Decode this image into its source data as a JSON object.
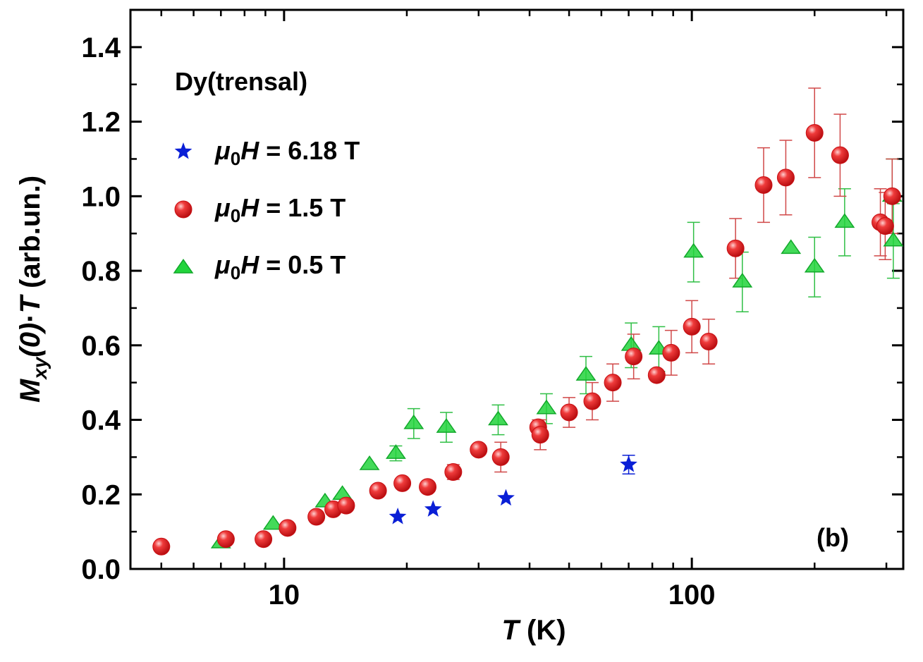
{
  "chart_data": {
    "type": "scatter",
    "title": "",
    "xlabel": "T (K)",
    "ylabel": "Mxy(0)·T (arb.un.)",
    "x_scale": "log",
    "xlim": [
      4.2,
      330
    ],
    "ylim": [
      0.0,
      1.5
    ],
    "x_ticks": [
      10,
      100
    ],
    "x_tick_labels": [
      "10",
      "100"
    ],
    "y_ticks": [
      0.0,
      0.2,
      0.4,
      0.6,
      0.8,
      1.0,
      1.2,
      1.4
    ],
    "y_tick_labels": [
      "0.0",
      "0.2",
      "0.4",
      "0.6",
      "0.8",
      "1.0",
      "1.2",
      "1.4"
    ],
    "grid": false,
    "legend_title": "Dy(trensal)",
    "legend_placement": "top-left",
    "panel_label": "(b)",
    "series": [
      {
        "name": "μ0H = 6.18 T",
        "marker": "star",
        "color": "#0a1fd6",
        "x": [
          19.0,
          23.2,
          35.0,
          70.0
        ],
        "y": [
          0.14,
          0.16,
          0.19,
          0.28
        ],
        "err": [
          0,
          0,
          0,
          0.025
        ]
      },
      {
        "name": "μ0H = 1.5 T",
        "marker": "circle",
        "color": "#e3151a",
        "x": [
          5.0,
          7.2,
          8.9,
          10.2,
          12.0,
          13.2,
          14.2,
          17.0,
          19.5,
          22.5,
          26.0,
          30.0,
          34.0,
          42.0,
          42.5,
          50.0,
          57.0,
          64.0,
          72.0,
          82.0,
          89.0,
          100.0,
          110.0,
          128.0,
          150.0,
          170.0,
          200.0,
          231.0,
          290.0,
          298.0,
          310.0
        ],
        "y": [
          0.06,
          0.08,
          0.08,
          0.11,
          0.14,
          0.16,
          0.17,
          0.21,
          0.23,
          0.22,
          0.26,
          0.32,
          0.3,
          0.38,
          0.36,
          0.42,
          0.45,
          0.5,
          0.57,
          0.52,
          0.58,
          0.65,
          0.61,
          0.86,
          1.03,
          1.05,
          1.17,
          1.11,
          0.93,
          0.92,
          1.0
        ],
        "err": [
          0,
          0,
          0,
          0,
          0,
          0,
          0,
          0,
          0,
          0,
          0.02,
          0,
          0.04,
          0.02,
          0.04,
          0.04,
          0.05,
          0.05,
          0.06,
          0,
          0.06,
          0.07,
          0.06,
          0.08,
          0.1,
          0.1,
          0.12,
          0.11,
          0.09,
          0.09,
          0.1
        ]
      },
      {
        "name": "μ0H = 0.5 T",
        "marker": "triangle",
        "color": "#22d43c",
        "x": [
          7.0,
          9.4,
          12.6,
          13.9,
          16.2,
          18.8,
          20.8,
          25.0,
          33.5,
          44.0,
          55.0,
          71.0,
          83.0,
          101.0,
          133.0,
          175.0,
          200.0,
          237.0,
          310.0,
          312.0
        ],
        "y": [
          0.07,
          0.12,
          0.18,
          0.2,
          0.28,
          0.31,
          0.39,
          0.38,
          0.4,
          0.43,
          0.52,
          0.6,
          0.59,
          0.85,
          0.77,
          0.86,
          0.81,
          0.93,
          1.0,
          0.88
        ],
        "err": [
          0,
          0,
          0,
          0,
          0,
          0.02,
          0.04,
          0.04,
          0.04,
          0.04,
          0.05,
          0.06,
          0.06,
          0.08,
          0.08,
          0,
          0.08,
          0.09,
          0.1,
          0.1
        ]
      }
    ]
  }
}
